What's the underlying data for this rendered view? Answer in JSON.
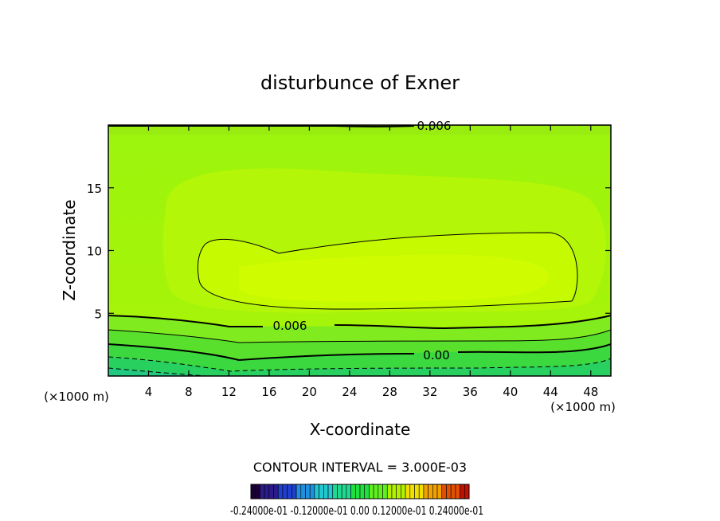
{
  "chart_data": {
    "type": "contour",
    "title": "disturbunce of Exner",
    "xlabel": "X-coordinate",
    "ylabel": "Z-coordinate",
    "x_unit": "(×1000 m)",
    "y_unit": "(×1000 m)",
    "xlim": [
      0,
      50
    ],
    "ylim": [
      0,
      20
    ],
    "x_ticks": [
      4,
      8,
      12,
      16,
      20,
      24,
      28,
      32,
      36,
      40,
      44,
      48
    ],
    "y_ticks": [
      5,
      10,
      15
    ],
    "contour_interval_label": "CONTOUR INTERVAL = 3.000E-03",
    "contour_labels": [
      {
        "text": "0.006",
        "x": 30.5,
        "z": 19.5
      },
      {
        "text": "0.006",
        "x": 17.8,
        "z": 4.0
      },
      {
        "text": "0.00",
        "x": 32.5,
        "z": 1.7
      }
    ],
    "colorbar": {
      "label": "-0.24000e-01 -0.12000e-01 0.00 0.12000e-01 0.24000e-01",
      "min": -0.024,
      "max": 0.024,
      "colors": [
        "#1a0033",
        "#2a1a8a",
        "#1f3fd0",
        "#1f8fe0",
        "#20c8d0",
        "#20d890",
        "#20e040",
        "#60f020",
        "#b0f000",
        "#f0e000",
        "#f0a000",
        "#e05000",
        "#c01000"
      ]
    },
    "fill_bands": [
      {
        "level": 0.012,
        "color": "#c8fc00"
      },
      {
        "level": 0.009,
        "color": "#a8f810"
      },
      {
        "level": 0.006,
        "color": "#7cf020"
      },
      {
        "level": 0.003,
        "color": "#4fe830"
      },
      {
        "level": 0.0,
        "color": "#2ee050"
      },
      {
        "level": -0.003,
        "color": "#22d870"
      }
    ]
  }
}
